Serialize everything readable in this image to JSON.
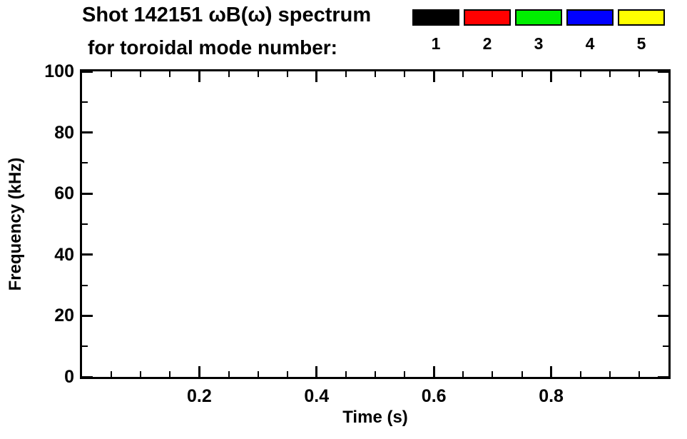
{
  "header": {
    "title_line1": "Shot 142151 ωB(ω) spectrum",
    "title_line2": "for toroidal mode number:"
  },
  "legend": {
    "items": [
      {
        "label": "1",
        "color": "#000000"
      },
      {
        "label": "2",
        "color": "#ff0000"
      },
      {
        "label": "3",
        "color": "#00ee00"
      },
      {
        "label": "4",
        "color": "#0000ff"
      },
      {
        "label": "5",
        "color": "#ffff00"
      }
    ]
  },
  "chart_data": {
    "type": "scatter",
    "title": "Shot 142151 ωB(ω) spectrum for toroidal mode number: 1 2 3 4 5",
    "xlabel": "Time (s)",
    "ylabel": "Frequency (kHz)",
    "xlim": [
      0,
      1
    ],
    "ylim": [
      0,
      100
    ],
    "x_major_ticks": [
      0.2,
      0.4,
      0.6,
      0.8
    ],
    "x_tick_labels": [
      "0.2",
      "0.4",
      "0.6",
      "0.8"
    ],
    "x_minor_ticks": [
      0.05,
      0.1,
      0.15,
      0.25,
      0.3,
      0.35,
      0.45,
      0.5,
      0.55,
      0.65,
      0.7,
      0.75,
      0.85,
      0.9,
      0.95
    ],
    "y_major_ticks": [
      0,
      20,
      40,
      60,
      80,
      100
    ],
    "y_tick_labels": [
      "0",
      "20",
      "40",
      "60",
      "80",
      "100"
    ],
    "y_minor_ticks": [
      10,
      30,
      50,
      70,
      90
    ],
    "grid": false,
    "legend_position": "top-right-above-plot",
    "plot_background": "#ffffff",
    "series": [
      {
        "name": "1",
        "color": "#000000",
        "points": []
      },
      {
        "name": "2",
        "color": "#ff0000",
        "points": []
      },
      {
        "name": "3",
        "color": "#00ee00",
        "points": []
      },
      {
        "name": "4",
        "color": "#0000ff",
        "points": []
      },
      {
        "name": "5",
        "color": "#ffff00",
        "points": []
      }
    ],
    "annotations": [
      "plot area is empty - no spectral data points visible"
    ]
  }
}
